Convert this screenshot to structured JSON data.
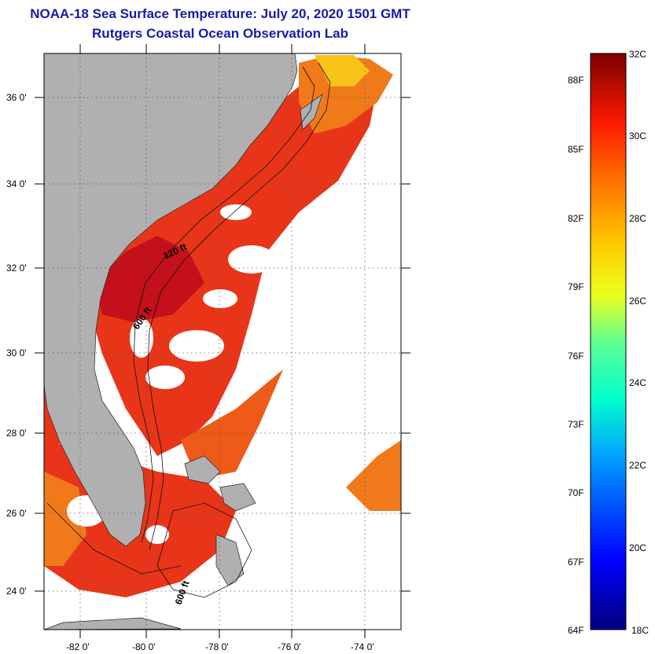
{
  "header": {
    "title": "NOAA-18 Sea Surface Temperature:  July 20, 2020 1501 GMT",
    "subtitle": "Rutgers Coastal Ocean Observation Lab"
  },
  "map": {
    "lat_labels": [
      "36 0'",
      "34 0'",
      "32 0'",
      "30 0'",
      "28 0'",
      "26 0'",
      "24 0'"
    ],
    "lon_labels": [
      "-82 0'",
      "-80 0'",
      "-78 0'",
      "-76 0'",
      "-74 0'"
    ],
    "isobath_labels": [
      "120 ft",
      "600 ft",
      "600 ft"
    ],
    "colors": {
      "land": "#b0b0b0",
      "ocean_warm": "#e8351a",
      "ocean_hot": "#c4101a",
      "ocean_mild": "#f07a1a",
      "ocean_cool": "#f8c41a"
    }
  },
  "colorbar": {
    "celsius_labels": [
      "32C",
      "30C",
      "28C",
      "26C",
      "24C",
      "22C",
      "20C",
      "18C"
    ],
    "fahrenheit_labels": [
      "88F",
      "85F",
      "82F",
      "79F",
      "76F",
      "73F",
      "70F",
      "67F",
      "64F"
    ],
    "min_c": 18,
    "max_c": 32
  }
}
